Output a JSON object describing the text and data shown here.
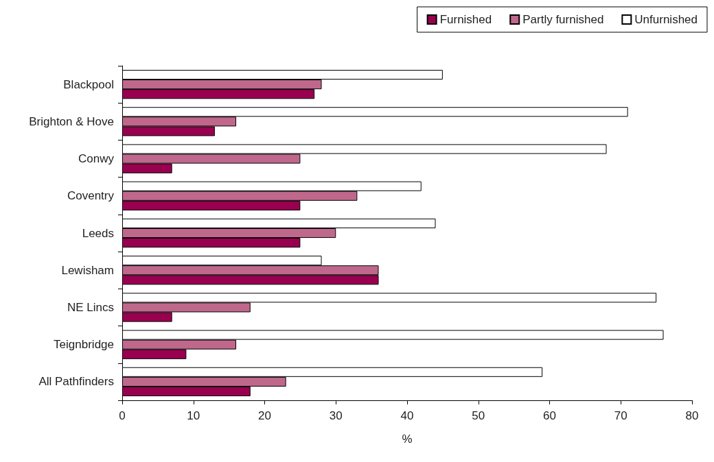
{
  "chart_data": {
    "type": "bar",
    "orientation": "horizontal",
    "xlabel": "%",
    "categories": [
      "Blackpool",
      "Brighton & Hove",
      "Conwy",
      "Coventry",
      "Leeds",
      "Lewisham",
      "NE Lincs",
      "Teignbridge",
      "All Pathfinders"
    ],
    "series": [
      {
        "name": "Furnished",
        "color": "#990050",
        "values": [
          27,
          13,
          7,
          25,
          25,
          36,
          7,
          9,
          18
        ]
      },
      {
        "name": "Partly furnished",
        "color": "#c0688c",
        "values": [
          28,
          16,
          25,
          33,
          30,
          36,
          18,
          16,
          23
        ]
      },
      {
        "name": "Unfurnished",
        "color": "#ffffff",
        "values": [
          45,
          71,
          68,
          42,
          44,
          28,
          75,
          76,
          59
        ]
      }
    ],
    "xlim": [
      0,
      80
    ],
    "xticks": [
      0,
      10,
      20,
      30,
      40,
      50,
      60,
      70,
      80
    ],
    "grid": false,
    "legend": "top right"
  }
}
